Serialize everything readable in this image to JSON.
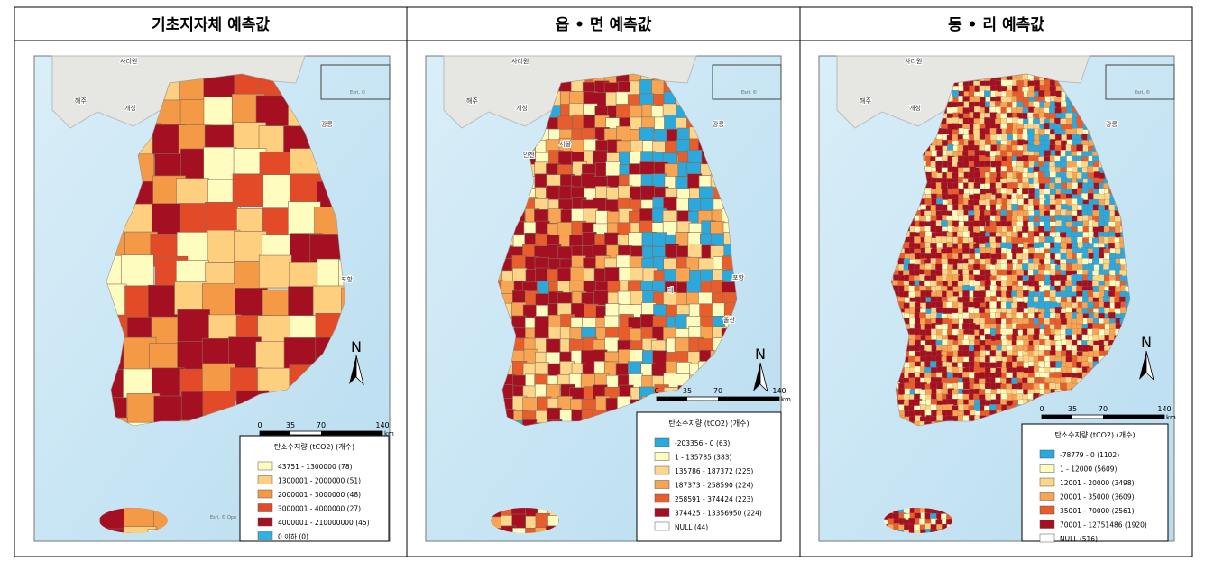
{
  "panels": [
    {
      "title": "기초지자체 예측값",
      "places": [
        "사리원",
        "해주",
        "개성",
        "강릉",
        "포항"
      ],
      "inset_credit": "Esri, ©",
      "credit": "Esri, © Ope",
      "north": "N",
      "scale": {
        "ticks": [
          "0",
          "35",
          "70",
          "140"
        ],
        "unit": "km"
      },
      "legend": {
        "title": "탄소수지량 (tCO2) (개수)",
        "items": [
          {
            "label": "43751 - 1300000 (78)",
            "color": "#fffcc0"
          },
          {
            "label": "1300001 - 2000000 (51)",
            "color": "#fdcf7e"
          },
          {
            "label": "2000001 - 3000000 (48)",
            "color": "#f49a46"
          },
          {
            "label": "3000001 - 4000000 (27)",
            "color": "#e34a28"
          },
          {
            "label": "4000001 - 210000000 (45)",
            "color": "#a50f22"
          },
          {
            "label": "0 이하 (0)",
            "color": "#2bb5e6"
          }
        ]
      }
    },
    {
      "title": "읍 • 면 예측값",
      "places": [
        "사리원",
        "해주",
        "개성",
        "강릉",
        "서울",
        "인천",
        "대",
        "포항",
        "울산"
      ],
      "inset_credit": "Esri, ©",
      "credit": "",
      "north": "N",
      "scale": {
        "ticks": [
          "0",
          "35",
          "70",
          "140"
        ],
        "unit": "km"
      },
      "legend": {
        "title": "탄소수지량 (tCO2) (개수)",
        "items": [
          {
            "label": "-203356 - 0 (63)",
            "color": "#2ba9dc"
          },
          {
            "label": "1 - 135785 (383)",
            "color": "#fffcc0"
          },
          {
            "label": "135786 - 187372 (225)",
            "color": "#fdd68a"
          },
          {
            "label": "187373 - 258590 (224)",
            "color": "#f7a553"
          },
          {
            "label": "258591 - 374424 (223)",
            "color": "#e85d2c"
          },
          {
            "label": "374425 - 13356950 (224)",
            "color": "#a50f22"
          },
          {
            "label": "NULL (44)",
            "color": "#ffffff"
          }
        ]
      }
    },
    {
      "title": "동 • 리 예측값",
      "places": [
        "사리원",
        "해주",
        "개성",
        "강릉"
      ],
      "inset_credit": "Esri, ©",
      "credit": "",
      "north": "N",
      "scale": {
        "ticks": [
          "0",
          "35",
          "70",
          "140"
        ],
        "unit": "km"
      },
      "legend": {
        "title": "탄소수지량 (tCO2) (개수)",
        "items": [
          {
            "label": "-78779 - 0 (1102)",
            "color": "#2ba9dc"
          },
          {
            "label": "1 - 12000 (5609)",
            "color": "#fffcc0"
          },
          {
            "label": "12001 - 20000 (3498)",
            "color": "#fdd68a"
          },
          {
            "label": "20001 - 35000 (3609)",
            "color": "#f7a553"
          },
          {
            "label": "35001 - 70000 (2561)",
            "color": "#e85d2c"
          },
          {
            "label": "70001 - 12751486 (1920)",
            "color": "#a50f22"
          },
          {
            "label": "NULL (516)",
            "color": "#ffffff"
          }
        ]
      }
    }
  ]
}
